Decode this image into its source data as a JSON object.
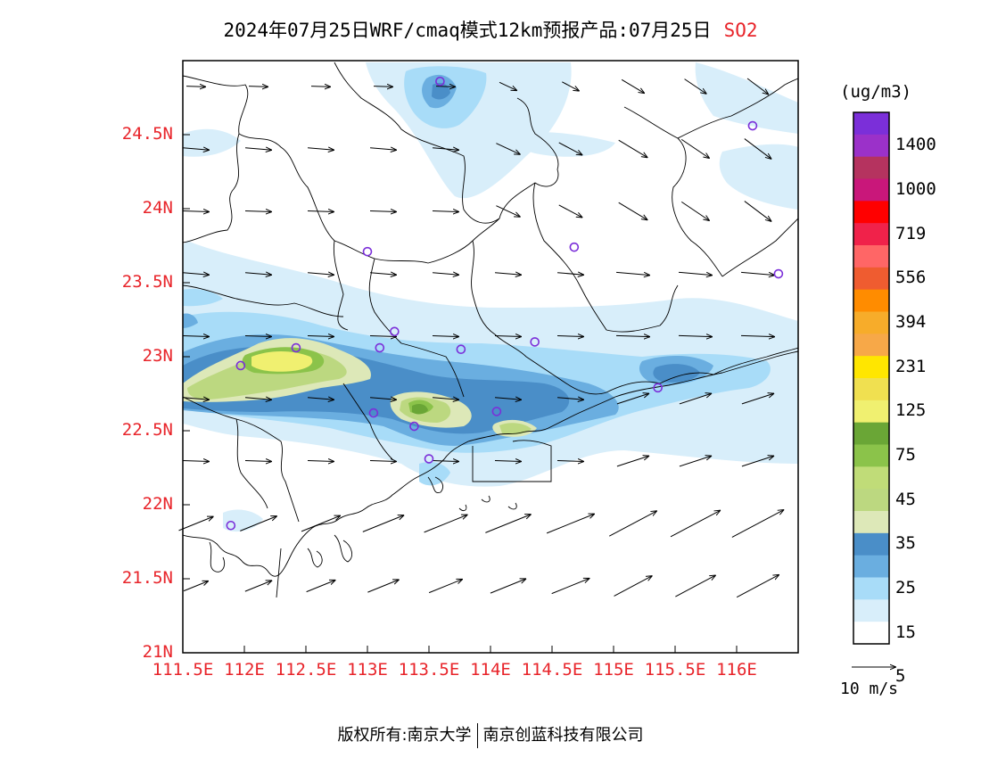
{
  "title": {
    "text": "2024年07月25日WRF/cmaq模式12km预报产品:07月25日",
    "species": "SO2"
  },
  "map": {
    "lon_range": [
      111.5,
      116.5
    ],
    "lat_range": [
      21.0,
      25.0
    ],
    "lat_ticks": [
      {
        "value": 24.5,
        "label": "24.5N"
      },
      {
        "value": 24.0,
        "label": "24N"
      },
      {
        "value": 23.5,
        "label": "23.5N"
      },
      {
        "value": 23.0,
        "label": "23N"
      },
      {
        "value": 22.5,
        "label": "22.5N"
      },
      {
        "value": 22.0,
        "label": "22N"
      },
      {
        "value": 21.5,
        "label": "21.5N"
      },
      {
        "value": 21.0,
        "label": "21N"
      }
    ],
    "lon_ticks": [
      {
        "value": 111.5,
        "label": "111.5E"
      },
      {
        "value": 112.0,
        "label": "112E"
      },
      {
        "value": 112.5,
        "label": "112.5E"
      },
      {
        "value": 113.0,
        "label": "113E"
      },
      {
        "value": 113.5,
        "label": "113.5E"
      },
      {
        "value": 114.0,
        "label": "114E"
      },
      {
        "value": 114.5,
        "label": "114.5E"
      },
      {
        "value": 115.0,
        "label": "115E"
      },
      {
        "value": 115.5,
        "label": "115.5E"
      },
      {
        "value": 116.0,
        "label": "116E"
      }
    ],
    "stations": [
      [
        113.59,
        24.86
      ],
      [
        116.13,
        24.56
      ],
      [
        113.0,
        23.71
      ],
      [
        114.68,
        23.74
      ],
      [
        116.34,
        23.56
      ],
      [
        113.22,
        23.17
      ],
      [
        113.1,
        23.06
      ],
      [
        112.42,
        23.06
      ],
      [
        113.76,
        23.05
      ],
      [
        114.36,
        23.1
      ],
      [
        111.97,
        22.94
      ],
      [
        113.05,
        22.62
      ],
      [
        113.38,
        22.53
      ],
      [
        114.05,
        22.63
      ],
      [
        113.5,
        22.31
      ],
      [
        115.36,
        22.79
      ],
      [
        111.89,
        21.86
      ]
    ]
  },
  "colorbar": {
    "unit": "(ug/m3)",
    "labels": [
      "1400",
      "1000",
      "719",
      "556",
      "394",
      "231",
      "125",
      "75",
      "45",
      "35",
      "25",
      "15",
      "5"
    ],
    "colors": [
      "#7b2fd9",
      "#9b31c9",
      "#b5335f",
      "#c9177a",
      "#ff0000",
      "#f0224a",
      "#ff6666",
      "#ef5c30",
      "#ff8c00",
      "#f7ac2a",
      "#f7a848",
      "#ffe600",
      "#f0e050",
      "#f0f070",
      "#6aa636",
      "#8bc34a",
      "#c0dc78",
      "#bcd880",
      "#dde8b8",
      "#4a8ec8",
      "#6aaee0",
      "#a8dcf8",
      "#d8eefa",
      "#ffffff"
    ]
  },
  "wind": {
    "reference_label": "10 m/s"
  },
  "footer": {
    "left": "版权所有:南京大学",
    "right": "南京创蓝科技有限公司"
  }
}
